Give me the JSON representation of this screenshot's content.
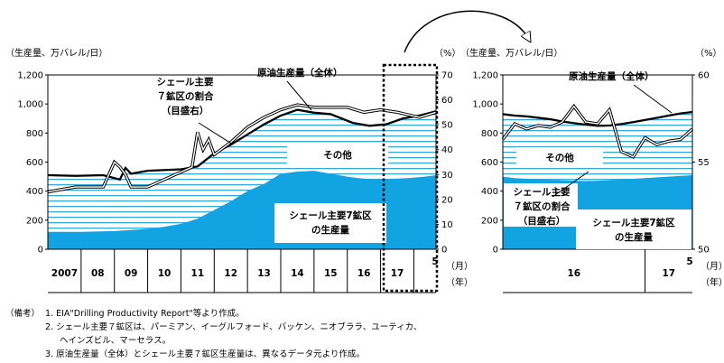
{
  "chart_data": [
    {
      "type": "area",
      "ylabel_left": "（生産量、万バレル/日）",
      "ylabel_right": "（%）",
      "y_left_ticks": [
        "0",
        "200",
        "400",
        "600",
        "800",
        "1,000",
        "1,200"
      ],
      "y_right_ticks": [
        "0",
        "10",
        "20",
        "30",
        "40",
        "50",
        "60",
        "70"
      ],
      "ylim_left": [
        0,
        1200
      ],
      "ylim_right": [
        0,
        70
      ],
      "x_years": [
        "2007",
        "08",
        "09",
        "10",
        "11",
        "12",
        "13",
        "14",
        "15",
        "16",
        "17"
      ],
      "x_month_label": "5",
      "x_unit_month": "（月）",
      "x_unit_year": "（年）",
      "annotations": {
        "share": "シェール主要\n７鉱区の割合\n（目盛右）",
        "crude": "原油生産量（全体）",
        "other": "その他",
        "shale_prod": "シェール主要7鉱区\nの生産量"
      },
      "series": [
        {
          "name": "シェール主要7鉱区の生産量",
          "t": [
            0,
            12,
            24,
            36,
            42,
            48,
            54,
            60,
            66,
            72,
            78,
            84,
            90,
            96,
            102,
            108,
            112,
            118,
            124,
            130,
            136,
            140
          ],
          "values": [
            120,
            120,
            125,
            140,
            155,
            175,
            210,
            270,
            330,
            400,
            450,
            520,
            535,
            540,
            520,
            500,
            490,
            480,
            485,
            490,
            500,
            510
          ]
        },
        {
          "name": "原油生産量（全体）",
          "t": [
            0,
            10,
            20,
            26,
            28,
            30,
            36,
            48,
            54,
            60,
            66,
            72,
            78,
            84,
            90,
            96,
            102,
            106,
            110,
            116,
            122,
            128,
            134,
            140
          ],
          "values": [
            510,
            505,
            510,
            480,
            560,
            520,
            540,
            550,
            570,
            660,
            720,
            790,
            860,
            920,
            960,
            940,
            930,
            900,
            870,
            850,
            860,
            900,
            920,
            950
          ]
        },
        {
          "name": "シェール主要７鉱区の割合（目盛右）",
          "t": [
            0,
            10,
            20,
            24,
            26,
            28,
            30,
            36,
            42,
            48,
            52,
            54,
            56,
            58,
            60,
            66,
            72,
            78,
            84,
            90,
            96,
            102,
            108,
            114,
            120,
            126,
            130,
            134,
            140
          ],
          "values": [
            23,
            25,
            25,
            35,
            33,
            30,
            25,
            25,
            28,
            31,
            33,
            47,
            40,
            44,
            38,
            43,
            49,
            53,
            56,
            58,
            57,
            57,
            57,
            55,
            56,
            55,
            54,
            53,
            55
          ]
        }
      ]
    },
    {
      "type": "area",
      "ylabel_left": "（生産量、万バレル/日）",
      "ylabel_right": "（%）",
      "y_left_ticks": [
        "0",
        "200",
        "400",
        "600",
        "800",
        "1,000",
        "1,200"
      ],
      "y_right_ticks": [
        "50",
        "55",
        "60"
      ],
      "ylim_left": [
        0,
        1200
      ],
      "ylim_right": [
        50,
        60
      ],
      "x_years": [
        "16",
        "17"
      ],
      "x_month_label": "5",
      "x_unit_month": "（月）",
      "x_unit_year": "（年）",
      "annotations": {
        "crude": "原油生産量（全体）",
        "other": "その他",
        "share": "シェール主要\n７鉱区の割合\n（目盛右）",
        "shale_prod": "シェール主要7鉱区\nの生産量"
      },
      "series": [
        {
          "name": "シェール主要7鉱区の生産量",
          "t": [
            0,
            1,
            2,
            3,
            4,
            5,
            6,
            7,
            8,
            9,
            10,
            11,
            12,
            13,
            14,
            15,
            16
          ],
          "values": [
            500,
            490,
            485,
            480,
            478,
            475,
            472,
            470,
            472,
            475,
            480,
            485,
            490,
            495,
            500,
            505,
            510
          ]
        },
        {
          "name": "原油生産量（全体）",
          "t": [
            0,
            1,
            2,
            3,
            4,
            5,
            6,
            7,
            8,
            9,
            10,
            11,
            12,
            13,
            14,
            15,
            16
          ],
          "values": [
            930,
            920,
            915,
            905,
            895,
            880,
            868,
            858,
            850,
            852,
            862,
            875,
            890,
            905,
            920,
            935,
            945
          ]
        },
        {
          "name": "シェール主要７鉱区の割合（目盛右）",
          "t": [
            0,
            1,
            2,
            3,
            4,
            5,
            6,
            7,
            8,
            9,
            10,
            11,
            12,
            13,
            14,
            15,
            16
          ],
          "values": [
            56.3,
            57.2,
            56.9,
            57.1,
            57.0,
            57.3,
            58.2,
            57.3,
            57.2,
            58.0,
            55.6,
            55.3,
            56.4,
            56.0,
            56.2,
            56.3,
            56.9
          ]
        }
      ]
    }
  ],
  "notes": {
    "head": "（備考）",
    "n1": "1.  EIA\"Drilling Productivity Report\"等より作成。",
    "n2": "2.  シェール主要７鉱区は、パーミアン、イーグルフォード、バッケン、ニオブララ、ユーティカ、",
    "n2b": "ヘインズビル、マーセラス。",
    "n3": "3.  原油生産量（全体）とシェール主要７鉱区生産量は、異なるデータ元より作成。"
  }
}
